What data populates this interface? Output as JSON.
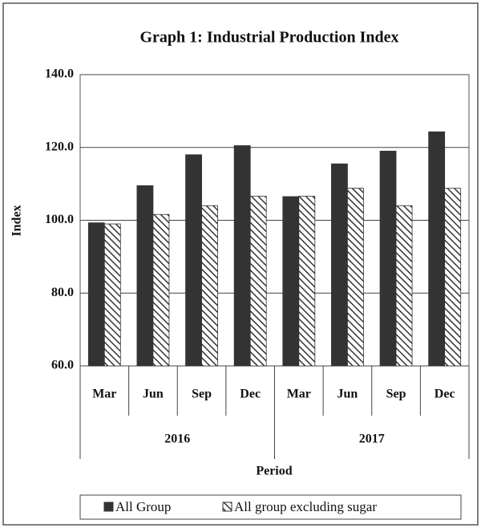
{
  "chart_data": {
    "type": "bar",
    "title": "Graph 1: Industrial Production Index",
    "y_label": "Index",
    "x_label": "Period",
    "categories": [
      "Mar",
      "Jun",
      "Sep",
      "Dec",
      "Mar",
      "Jun",
      "Sep",
      "Dec"
    ],
    "groups": [
      "2016",
      "2017"
    ],
    "series": [
      {
        "name": "All Group",
        "color": "#333333",
        "pattern": "solid",
        "values": [
          99.3,
          109.5,
          118,
          120.5,
          106.5,
          115.5,
          119,
          124.3
        ]
      },
      {
        "name": "All group excluding sugar",
        "color": "#333333",
        "pattern": "hatch",
        "values": [
          99,
          101.6,
          104,
          106.6,
          106.6,
          108.8,
          104,
          108.8
        ]
      }
    ],
    "ylim": [
      60,
      140
    ],
    "yticks": [
      {
        "value": 60,
        "label": "60.0"
      },
      {
        "value": 80,
        "label": "80.0"
      },
      {
        "value": 100,
        "label": "100.0"
      },
      {
        "value": 120,
        "label": "120.0"
      },
      {
        "value": 140,
        "label": "140.0"
      }
    ],
    "grid": true,
    "legend": "bottom"
  }
}
